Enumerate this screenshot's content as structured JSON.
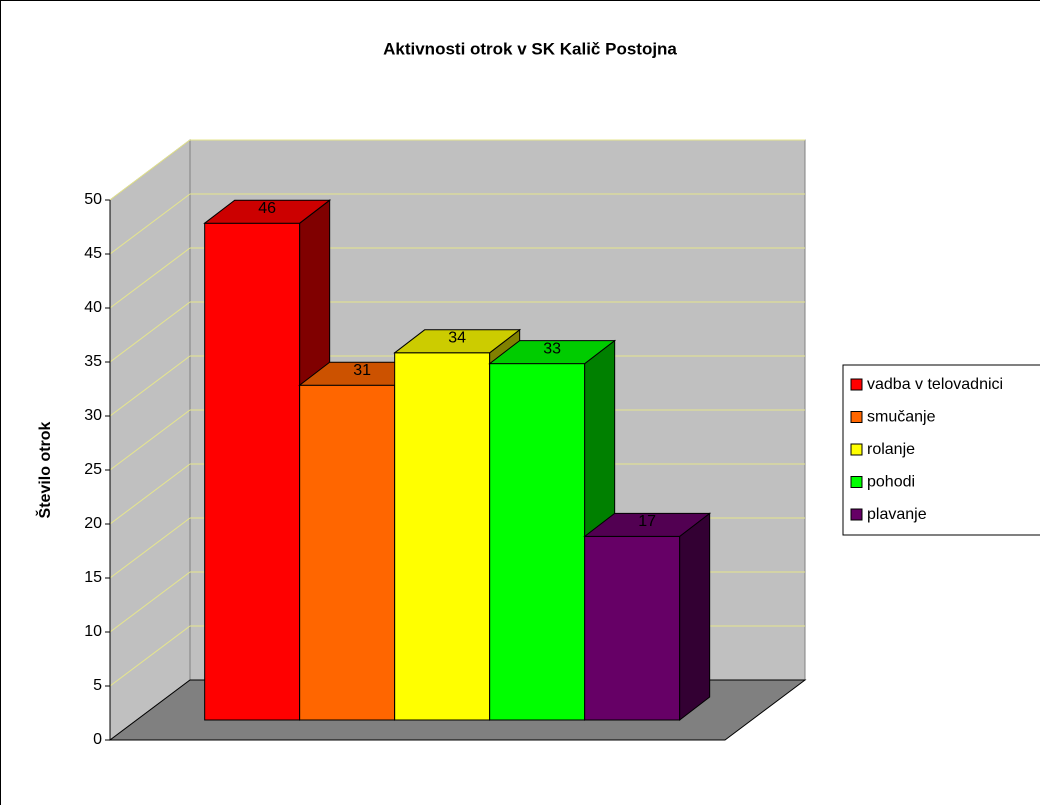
{
  "chart_data": {
    "type": "bar3d",
    "title": "Aktivnosti otrok v SK Kalič Postojna",
    "y_label": "Število otrok",
    "categories": [
      null
    ],
    "series": [
      {
        "name": "vadba v telovadnici",
        "color": "#ff0000",
        "values": [
          46
        ]
      },
      {
        "name": "smučanje",
        "color": "#ff6600",
        "values": [
          31
        ]
      },
      {
        "name": "rolanje",
        "color": "#ffff00",
        "values": [
          34
        ]
      },
      {
        "name": "pohodi",
        "color": "#00ff00",
        "values": [
          33
        ]
      },
      {
        "name": "plavanje",
        "color": "#660066",
        "values": [
          17
        ]
      }
    ],
    "ylim": [
      0,
      50
    ],
    "yticks": [
      0,
      5,
      10,
      15,
      20,
      25,
      30,
      35,
      40,
      45,
      50
    ],
    "grid": true,
    "legend": "right"
  }
}
